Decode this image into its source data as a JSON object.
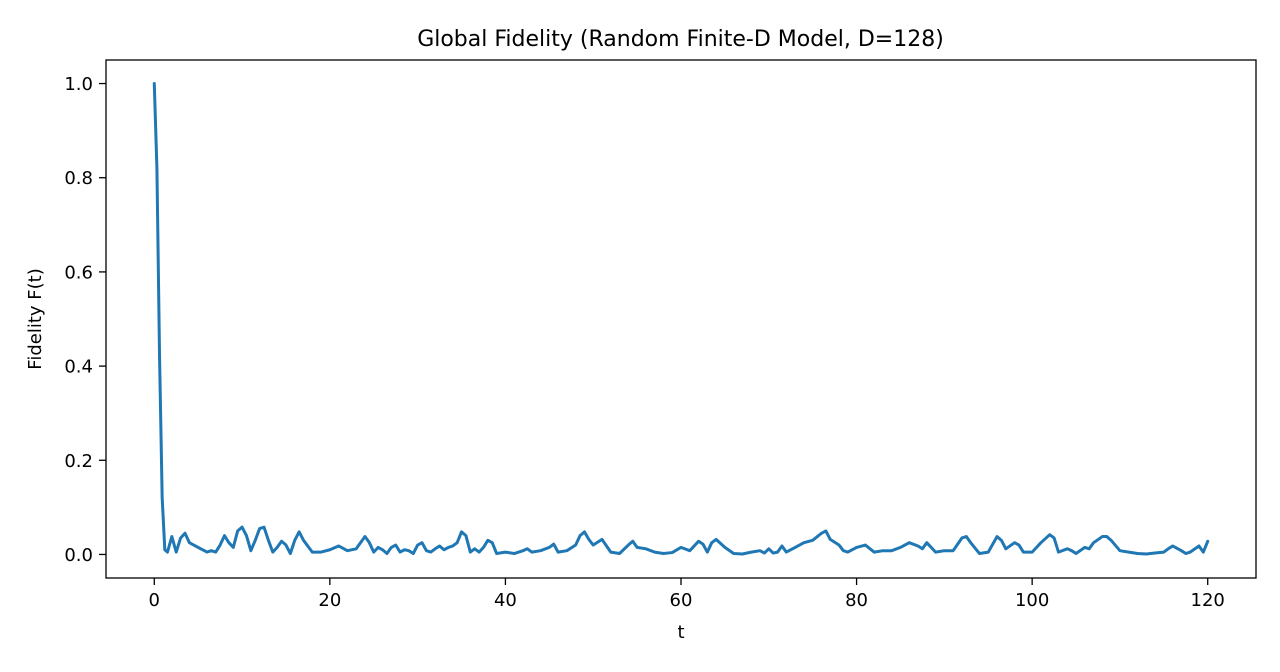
{
  "chart_data": {
    "type": "line",
    "title": "Global Fidelity (Random Finite-D Model, D=128)",
    "xlabel": "t",
    "ylabel": "Fidelity F(t)",
    "xlim": [
      -5.5,
      125.5
    ],
    "ylim": [
      -0.05,
      1.05
    ],
    "x_ticks": [
      0,
      20,
      40,
      60,
      80,
      100,
      120
    ],
    "x_tick_labels": [
      "0",
      "20",
      "40",
      "60",
      "80",
      "100",
      "120"
    ],
    "y_ticks": [
      0.0,
      0.2,
      0.4,
      0.6,
      0.8,
      1.0
    ],
    "y_tick_labels": [
      "0.0",
      "0.2",
      "0.4",
      "0.6",
      "0.8",
      "1.0"
    ],
    "grid": false,
    "series": [
      {
        "color": "#1f77b4",
        "x": [
          0,
          0.3,
          0.6,
          0.9,
          1.2,
          1.5,
          2.0,
          2.5,
          3.0,
          3.5,
          4.0,
          5.0,
          6.0,
          6.5,
          7.0,
          7.5,
          8.0,
          8.5,
          9.0,
          9.5,
          10.0,
          10.5,
          11.0,
          11.5,
          12.0,
          12.5,
          13.0,
          13.5,
          14.0,
          14.5,
          15.0,
          15.5,
          16.0,
          16.5,
          17.0,
          18.0,
          19.0,
          20.0,
          21.0,
          22.0,
          23.0,
          24.0,
          24.5,
          25.0,
          25.5,
          26.0,
          26.5,
          27.0,
          27.5,
          28.0,
          28.5,
          29.0,
          29.5,
          30.0,
          30.5,
          31.0,
          31.5,
          32.0,
          32.5,
          33.0,
          33.5,
          34.0,
          34.5,
          35.0,
          35.5,
          36.0,
          36.5,
          37.0,
          37.5,
          38.0,
          38.5,
          39.0,
          40.0,
          41.0,
          42.0,
          42.5,
          43.0,
          44.0,
          45.0,
          45.5,
          46.0,
          47.0,
          48.0,
          48.5,
          49.0,
          49.5,
          50.0,
          51.0,
          52.0,
          53.0,
          54.0,
          54.5,
          55.0,
          56.0,
          57.0,
          58.0,
          59.0,
          60.0,
          61.0,
          62.0,
          62.5,
          63.0,
          63.5,
          64.0,
          65.0,
          66.0,
          67.0,
          68.0,
          69.0,
          69.5,
          70.0,
          70.5,
          71.0,
          71.5,
          72.0,
          73.0,
          74.0,
          75.0,
          76.0,
          76.5,
          77.0,
          78.0,
          78.5,
          79.0,
          80.0,
          81.0,
          82.0,
          83.0,
          84.0,
          85.0,
          86.0,
          87.0,
          87.5,
          88.0,
          89.0,
          90.0,
          91.0,
          92.0,
          92.5,
          93.0,
          94.0,
          95.0,
          96.0,
          96.5,
          97.0,
          98.0,
          98.5,
          99.0,
          100.0,
          101.0,
          102.0,
          102.5,
          103.0,
          104.0,
          104.5,
          105.0,
          106.0,
          106.5,
          107.0,
          108.0,
          108.5,
          109.0,
          110.0,
          111.0,
          112.0,
          113.0,
          114.0,
          115.0,
          115.5,
          116.0,
          117.0,
          117.5,
          118.0,
          119.0,
          119.5,
          120.0
        ],
        "y": [
          1.0,
          0.82,
          0.42,
          0.12,
          0.01,
          0.005,
          0.038,
          0.005,
          0.035,
          0.045,
          0.025,
          0.015,
          0.005,
          0.008,
          0.005,
          0.02,
          0.04,
          0.025,
          0.015,
          0.05,
          0.058,
          0.04,
          0.008,
          0.03,
          0.055,
          0.058,
          0.03,
          0.005,
          0.015,
          0.028,
          0.02,
          0.002,
          0.03,
          0.048,
          0.03,
          0.005,
          0.005,
          0.01,
          0.018,
          0.008,
          0.012,
          0.038,
          0.025,
          0.005,
          0.015,
          0.01,
          0.002,
          0.015,
          0.02,
          0.005,
          0.01,
          0.008,
          0.002,
          0.02,
          0.025,
          0.008,
          0.005,
          0.012,
          0.018,
          0.01,
          0.015,
          0.018,
          0.025,
          0.048,
          0.04,
          0.005,
          0.012,
          0.005,
          0.015,
          0.03,
          0.025,
          0.002,
          0.005,
          0.002,
          0.008,
          0.012,
          0.005,
          0.008,
          0.015,
          0.022,
          0.005,
          0.008,
          0.02,
          0.04,
          0.048,
          0.032,
          0.02,
          0.032,
          0.005,
          0.002,
          0.02,
          0.028,
          0.015,
          0.012,
          0.005,
          0.002,
          0.004,
          0.015,
          0.008,
          0.028,
          0.022,
          0.005,
          0.025,
          0.032,
          0.015,
          0.002,
          0.001,
          0.005,
          0.008,
          0.003,
          0.012,
          0.003,
          0.005,
          0.018,
          0.005,
          0.015,
          0.025,
          0.03,
          0.045,
          0.05,
          0.032,
          0.02,
          0.008,
          0.005,
          0.015,
          0.02,
          0.005,
          0.008,
          0.008,
          0.015,
          0.025,
          0.018,
          0.012,
          0.025,
          0.005,
          0.008,
          0.008,
          0.035,
          0.038,
          0.025,
          0.002,
          0.005,
          0.038,
          0.03,
          0.012,
          0.025,
          0.02,
          0.005,
          0.005,
          0.025,
          0.042,
          0.035,
          0.005,
          0.012,
          0.008,
          0.002,
          0.015,
          0.012,
          0.025,
          0.038,
          0.038,
          0.03,
          0.008,
          0.005,
          0.002,
          0.001,
          0.003,
          0.005,
          0.012,
          0.018,
          0.008,
          0.002,
          0.005,
          0.018,
          0.005,
          0.028
        ]
      }
    ]
  }
}
